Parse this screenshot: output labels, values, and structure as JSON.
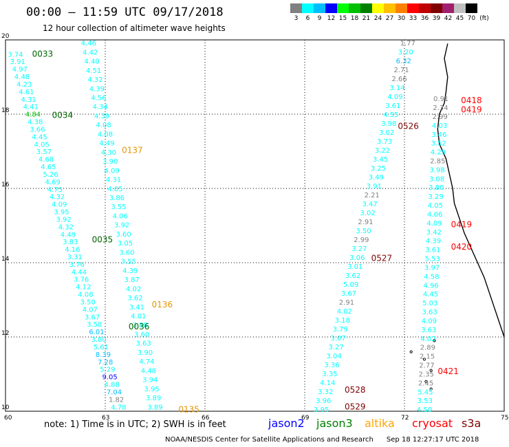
{
  "title": "00:00 — 11:59 UTC 09/17/2018",
  "subtitle": "12 hour collection of altimeter wave heights",
  "legend": {
    "unit": "(ft)",
    "bins": [
      {
        "label": "3",
        "color": "#808080"
      },
      {
        "label": "6",
        "color": "#00ffff"
      },
      {
        "label": "9",
        "color": "#00bfff"
      },
      {
        "label": "12",
        "color": "#0000ff"
      },
      {
        "label": "15",
        "color": "#00ff00"
      },
      {
        "label": "18",
        "color": "#00c000"
      },
      {
        "label": "21",
        "color": "#008000"
      },
      {
        "label": "24",
        "color": "#ffff00"
      },
      {
        "label": "27",
        "color": "#ffc000"
      },
      {
        "label": "30",
        "color": "#ff8000"
      },
      {
        "label": "33",
        "color": "#ff0000"
      },
      {
        "label": "36",
        "color": "#c00000"
      },
      {
        "label": "39",
        "color": "#800000"
      },
      {
        "label": "42",
        "color": "#a0206f"
      },
      {
        "label": "45",
        "color": "#c0c0c0"
      },
      {
        "label": "70",
        "color": "#000000"
      }
    ]
  },
  "axes": {
    "lon_ticks": [
      "60",
      "63",
      "66",
      "69",
      "72",
      "75"
    ],
    "lat_ticks": [
      "20",
      "18",
      "16",
      "14",
      "12",
      "10"
    ]
  },
  "time_labels": [
    {
      "text": "0033",
      "color": "#006400",
      "lon": 60.8,
      "lat": 19.55
    },
    {
      "text": "0034",
      "color": "#006400",
      "lon": 61.4,
      "lat": 17.9
    },
    {
      "text": "0137",
      "color": "#e69500",
      "lon": 63.5,
      "lat": 16.95
    },
    {
      "text": "0035",
      "color": "#006400",
      "lon": 62.6,
      "lat": 14.55
    },
    {
      "text": "0136",
      "color": "#e69500",
      "lon": 64.4,
      "lat": 12.8
    },
    {
      "text": "0036",
      "color": "#006400",
      "lon": 63.7,
      "lat": 12.2
    },
    {
      "text": "0135",
      "color": "#e69500",
      "lon": 65.2,
      "lat": 9.97
    },
    {
      "text": "0526",
      "color": "#800000",
      "lon": 71.8,
      "lat": 17.6
    },
    {
      "text": "0527",
      "color": "#800000",
      "lon": 71.0,
      "lat": 14.05
    },
    {
      "text": "0528",
      "color": "#800000",
      "lon": 70.2,
      "lat": 10.5
    },
    {
      "text": "0529",
      "color": "#800000",
      "lon": 70.2,
      "lat": 10.05
    },
    {
      "text": "0418",
      "color": "#ff0000",
      "lon": 73.7,
      "lat": 18.3
    },
    {
      "text": "0419",
      "color": "#ff0000",
      "lon": 73.7,
      "lat": 18.05
    },
    {
      "text": "0419",
      "color": "#ff0000",
      "lon": 73.4,
      "lat": 14.95
    },
    {
      "text": "0420",
      "color": "#ff0000",
      "lon": 73.4,
      "lat": 14.35
    },
    {
      "text": "0421",
      "color": "#ff0000",
      "lon": 73.0,
      "lat": 11.0
    }
  ],
  "tracks": [
    {
      "name": "track-a",
      "from": [
        60.3,
        19.55
      ],
      "to": [
        63.4,
        10.05
      ],
      "values": [
        "3.74",
        "3.91",
        "4.97",
        "4.48",
        "4.23",
        "4.61",
        "4.31",
        "4.41",
        "4.84",
        "4.38",
        "3.66",
        "4.45",
        "4.05",
        "3.57",
        "4.68",
        "4.65",
        "5.26",
        "4.69",
        "4.75",
        "4.32",
        "4.09",
        "3.95",
        "3.92",
        "4.32",
        "4.49",
        "3.83",
        "4.16",
        "3.31",
        "3.76",
        "4.44",
        "3.76",
        "4.12",
        "4.08",
        "3.50",
        "4.07",
        "3.67",
        "3.58",
        "6.01",
        "3.80",
        "5.61",
        "8.39",
        "7.28",
        "5.29",
        "9.05",
        "4.88",
        "7.04",
        "1.82",
        "4.78"
      ],
      "colors": {
        "4.84": "#00c000",
        "9.05": "#0000ff",
        "1.82": "#808080",
        "6.01": "#00bfff",
        "8.39": "#00bfff",
        "7.28": "#00bfff",
        "7.04": "#00bfff"
      }
    },
    {
      "name": "track-b",
      "from": [
        62.5,
        19.85
      ],
      "to": [
        64.5,
        10.05
      ],
      "values": [
        "4.46",
        "4.42",
        "4.40",
        "4.51",
        "4.32",
        "4.39",
        "4.56",
        "4.34",
        "4.39",
        "4.08",
        "4.08",
        "4.49",
        "4.30",
        "3.90",
        "4.09",
        "4.31",
        "4.05",
        "3.86",
        "3.55",
        "4.06",
        "3.92",
        "3.60",
        "3.05",
        "3.60",
        "3.55",
        "4.39",
        "3.87",
        "4.02",
        "3.62",
        "3.41",
        "4.01",
        "3.88",
        "3.60",
        "3.63",
        "3.90",
        "4.74",
        "4.48",
        "3.94",
        "3.95",
        "3.89",
        "3.89"
      ],
      "colors": {}
    },
    {
      "name": "track-c",
      "from": [
        69.5,
        9.98
      ],
      "to": [
        72.1,
        19.85
      ],
      "values": [
        "3.95",
        "3.96",
        "3.32",
        "4.14",
        "3.35",
        "3.36",
        "3.04",
        "3.27",
        "3.07",
        "3.79",
        "3.18",
        "4.02",
        "2.91",
        "3.67",
        "5.09",
        "3.62",
        "3.01",
        "3.06",
        "3.27",
        "2.99",
        "3.50",
        "2.91",
        "3.02",
        "3.47",
        "2.21",
        "3.91",
        "3.49",
        "3.25",
        "3.45",
        "3.22",
        "3.73",
        "3.02",
        "3.98",
        "4.55",
        "3.61",
        "4.09",
        "3.14",
        "2.66",
        "2.71",
        "6.32",
        "3.20",
        "1.77"
      ],
      "colors": {
        "2.91": "#808080",
        "2.99": "#808080",
        "2.21": "#808080",
        "2.66": "#808080",
        "2.71": "#808080",
        "1.77": "#808080",
        "2.50": "#808080",
        "6.32": "#00bfff"
      }
    },
    {
      "name": "track-d",
      "from": [
        72.6,
        9.98
      ],
      "to": [
        73.1,
        18.35
      ],
      "values": [
        "4.50",
        "3.53",
        "5.45",
        "2.45",
        "2.35",
        "2.77",
        "2.15",
        "2.89",
        "4.02",
        "3.63",
        "4.09",
        "3.63",
        "5.03",
        "4.45",
        "4.96",
        "4.58",
        "3.97",
        "5.53",
        "3.61",
        "4.39",
        "3.42",
        "4.09",
        "4.06",
        "4.05",
        "3.29",
        "3.80",
        "3.08",
        "3.98",
        "2.85",
        "4.29",
        "3.52",
        "3.46",
        "4.03",
        "2.99",
        "2.34",
        "0.91"
      ],
      "colors": {
        "2.45": "#808080",
        "2.35": "#808080",
        "2.77": "#808080",
        "2.15": "#808080",
        "2.89": "#808080",
        "2.85": "#808080",
        "2.99": "#808080",
        "2.34": "#808080",
        "0.91": "#808080"
      }
    }
  ],
  "note": "note: 1) Time is in UTC; 2) SWH is in feet",
  "satellites": [
    {
      "name": "jason2",
      "color": "#0000ff"
    },
    {
      "name": "jason3",
      "color": "#008000"
    },
    {
      "name": "altika",
      "color": "#ffa500"
    },
    {
      "name": "cryosat",
      "color": "#ff0000"
    },
    {
      "name": "s3a",
      "color": "#800000"
    }
  ],
  "footer": "NOAA/NESDIS Center for Satellite Applications and Research      Sep 18 12:27:17 UTC 2018"
}
